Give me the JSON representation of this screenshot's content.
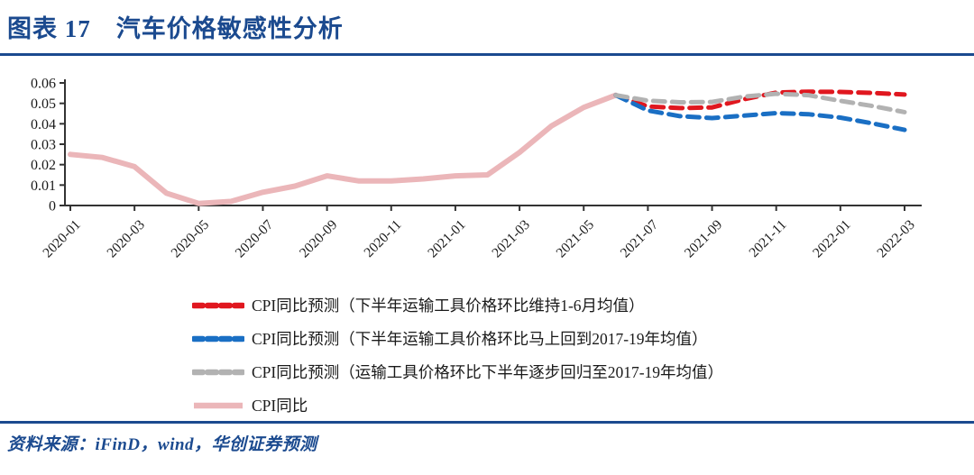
{
  "header": {
    "title": "图表 17　汽车价格敏感性分析"
  },
  "footer": {
    "source": "资料来源：iFinD，wind，华创证券预测"
  },
  "colors": {
    "navy": "#1B4A8F",
    "axis": "#333333",
    "text": "#1A1A1A",
    "red": "#E0171F",
    "blue": "#1A6FC4",
    "gray": "#B2B2B2",
    "pink": "#EBB6B9"
  },
  "chart_data": {
    "type": "line",
    "title": "图表 17　汽车价格敏感性分析",
    "xlabel": "",
    "ylabel": "",
    "ylim": [
      0,
      0.06
    ],
    "y_ticks": [
      0,
      0.01,
      0.02,
      0.03,
      0.04,
      0.05,
      0.06
    ],
    "y_tick_labels": [
      "0",
      "0.01",
      "0.02",
      "0.03",
      "0.04",
      "0.05",
      "0.06"
    ],
    "grid": "off",
    "legend_position": "bottom",
    "x": [
      "2020-01",
      "2020-02",
      "2020-03",
      "2020-04",
      "2020-05",
      "2020-06",
      "2020-07",
      "2020-08",
      "2020-09",
      "2020-10",
      "2020-11",
      "2020-12",
      "2021-01",
      "2021-02",
      "2021-03",
      "2021-04",
      "2021-05",
      "2021-06",
      "2021-07",
      "2021-08",
      "2021-09",
      "2021-10",
      "2021-11",
      "2021-12",
      "2022-01",
      "2022-02",
      "2022-03"
    ],
    "x_tick_labels": [
      "2020-01",
      "2020-03",
      "2020-05",
      "2020-07",
      "2020-09",
      "2020-11",
      "2021-01",
      "2021-03",
      "2021-05",
      "2021-07",
      "2021-09",
      "2021-11",
      "2022-01",
      "2022-03"
    ],
    "series": [
      {
        "name": "CPI同比预测（下半年运输工具价格环比维持1-6月均值）",
        "color_key": "red",
        "style": "dashed",
        "values": [
          null,
          null,
          null,
          null,
          null,
          null,
          null,
          null,
          null,
          null,
          null,
          null,
          null,
          null,
          null,
          null,
          null,
          0.054,
          0.0485,
          0.0477,
          0.048,
          0.052,
          0.0553,
          0.0557,
          0.0556,
          0.0551,
          0.0543
        ]
      },
      {
        "name": "CPI同比预测（下半年运输工具价格环比马上回到2017-19年均值）",
        "color_key": "blue",
        "style": "dashed",
        "values": [
          null,
          null,
          null,
          null,
          null,
          null,
          null,
          null,
          null,
          null,
          null,
          null,
          null,
          null,
          null,
          null,
          null,
          0.054,
          0.0465,
          0.0437,
          0.0428,
          0.044,
          0.0452,
          0.0447,
          0.043,
          0.0402,
          0.037
        ]
      },
      {
        "name": "CPI同比预测（运输工具价格环比下半年逐步回归至2017-19年均值）",
        "color_key": "gray",
        "style": "dashed",
        "values": [
          null,
          null,
          null,
          null,
          null,
          null,
          null,
          null,
          null,
          null,
          null,
          null,
          null,
          null,
          null,
          null,
          null,
          0.054,
          0.0513,
          0.0505,
          0.0507,
          0.0533,
          0.0547,
          0.054,
          0.0512,
          0.0487,
          0.0457
        ]
      },
      {
        "name": "CPI同比",
        "color_key": "pink",
        "style": "solid",
        "values": [
          0.025,
          0.0235,
          0.019,
          0.006,
          0.001,
          0.002,
          0.0065,
          0.0095,
          0.0145,
          0.012,
          0.012,
          0.013,
          0.0145,
          0.015,
          0.026,
          0.039,
          0.048,
          0.054,
          null,
          null,
          null,
          null,
          null,
          null,
          null,
          null,
          null
        ]
      }
    ]
  }
}
